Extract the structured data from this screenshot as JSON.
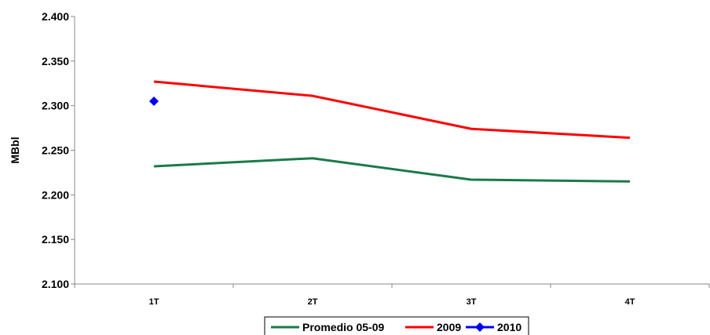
{
  "chart_data": {
    "type": "line",
    "title": "",
    "xlabel": "",
    "ylabel": "MBbl",
    "categories": [
      "1T",
      "2T",
      "3T",
      "4T"
    ],
    "ylim": [
      2.1,
      2.4
    ],
    "yticks": [
      "2.100",
      "2.150",
      "2.200",
      "2.250",
      "2.300",
      "2.350",
      "2.400"
    ],
    "ytick_values": [
      2.1,
      2.15,
      2.2,
      2.25,
      2.3,
      2.35,
      2.4
    ],
    "grid": false,
    "legend_position": "bottom",
    "series": [
      {
        "name": "Promedio 05-09",
        "color": "#1a7a4a",
        "marker": "none",
        "values": [
          2.232,
          2.241,
          2.217,
          2.215
        ]
      },
      {
        "name": "2009",
        "color": "#ff0000",
        "marker": "none",
        "values": [
          2.327,
          2.311,
          2.274,
          2.264
        ]
      },
      {
        "name": "2010",
        "color": "#0000ff",
        "marker": "diamond",
        "values": [
          2.305,
          null,
          null,
          null
        ]
      }
    ]
  }
}
